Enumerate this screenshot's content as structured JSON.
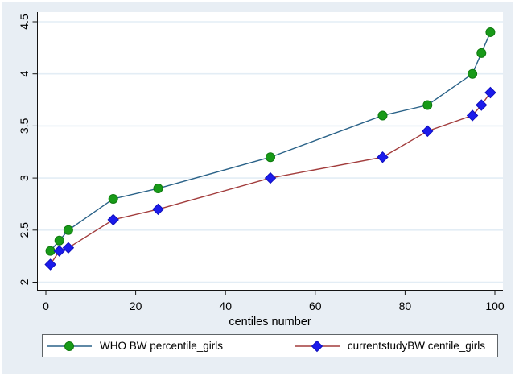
{
  "figure": {
    "background_color": "#e8eef4",
    "plot_background_color": "#ffffff",
    "grid_color": "#e3edf5",
    "axis_color": "#141414",
    "legend_border_color": "#5f6467"
  },
  "chart_data": {
    "type": "line",
    "title": "",
    "xlabel": "centiles number",
    "ylabel": "",
    "xlim": [
      0,
      100
    ],
    "ylim": [
      2,
      4.5
    ],
    "x_ticks": [
      0,
      20,
      40,
      60,
      80,
      100
    ],
    "y_ticks": [
      2,
      2.5,
      3,
      3.5,
      4,
      4.5
    ],
    "grid": "horizontal",
    "legend_position": "bottom",
    "x": [
      1,
      3,
      5,
      15,
      25,
      50,
      75,
      85,
      95,
      97,
      99
    ],
    "series": [
      {
        "name": "WHO BW percentile_girls",
        "marker": "circle",
        "marker_color": "#189a18",
        "marker_edge_color": "#0f7a0f",
        "line_color": "#2a6288",
        "values": [
          2.3,
          2.4,
          2.5,
          2.8,
          2.9,
          3.2,
          3.6,
          3.7,
          4.0,
          4.2,
          4.4
        ]
      },
      {
        "name": "currentstudyBW centile_girls",
        "marker": "diamond",
        "marker_color": "#1b1beb",
        "marker_edge_color": "#0f0fbe",
        "line_color": "#a23c3c",
        "values": [
          2.17,
          2.3,
          2.33,
          2.6,
          2.7,
          3.0,
          3.2,
          3.45,
          3.6,
          3.7,
          3.82
        ]
      }
    ]
  }
}
